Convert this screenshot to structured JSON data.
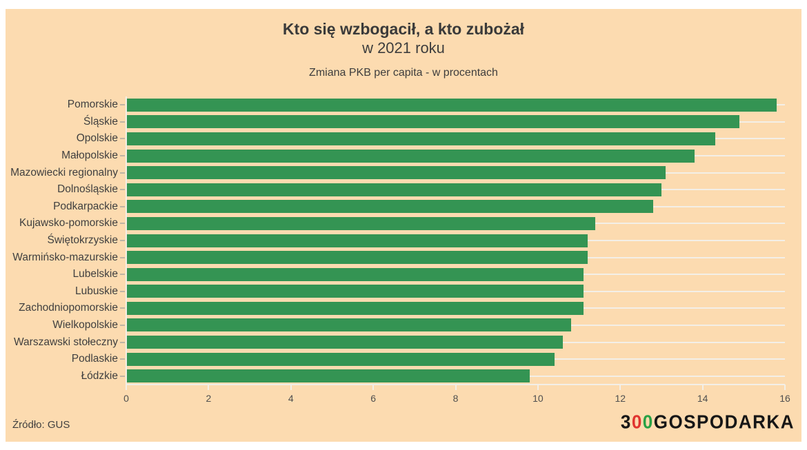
{
  "header": {
    "title_line1": "Kto się wzbogacił, a kto zubożał",
    "title_line2": "w 2021 roku",
    "subtitle": "Zmiana PKB per capita - w procentach"
  },
  "chart_data": {
    "type": "bar",
    "orientation": "horizontal",
    "title": "Kto się wzbogacił, a kto zubożał w 2021 roku",
    "subtitle": "Zmiana PKB per capita - w procentach",
    "xlabel": "",
    "ylabel": "",
    "xlim": [
      0,
      16
    ],
    "x_ticks": [
      0,
      2,
      4,
      6,
      8,
      10,
      12,
      14,
      16
    ],
    "grid": "horizontal category lines + baseline, light cream on peach",
    "legend": "none",
    "categories": [
      "Pomorskie",
      "Śląskie",
      "Opolskie",
      "Małopolskie",
      "Mazowiecki regionalny",
      "Dolnośląskie",
      "Podkarpackie",
      "Kujawsko-pomorskie",
      "Świętokrzyskie",
      "Warmińsko-mazurskie",
      "Lubelskie",
      "Lubuskie",
      "Zachodniopomorskie",
      "Wielkopolskie",
      "Warszawski stołeczny",
      "Podlaskie",
      "Łódzkie"
    ],
    "values": [
      15.8,
      14.9,
      14.3,
      13.8,
      13.1,
      13.0,
      12.8,
      11.4,
      11.2,
      11.2,
      11.1,
      11.1,
      11.1,
      10.8,
      10.6,
      10.4,
      9.8
    ]
  },
  "footer": {
    "source": "Źródło: GUS",
    "logo": {
      "digit": "3",
      "zero_red": "0",
      "zero_green": "0",
      "rest": "GOSPODARKA"
    }
  },
  "colors": {
    "page_background": "#ffffff",
    "panel_background": "#fcdbb0",
    "bar": "#349453",
    "grid_line": "#f3efe7",
    "y_tick": "#bfb5a5",
    "title_text": "#3a3a3a",
    "tick_text": "#4f4f4f",
    "logo_black": "#161616",
    "logo_red": "#e0342f",
    "logo_green": "#28a145"
  }
}
